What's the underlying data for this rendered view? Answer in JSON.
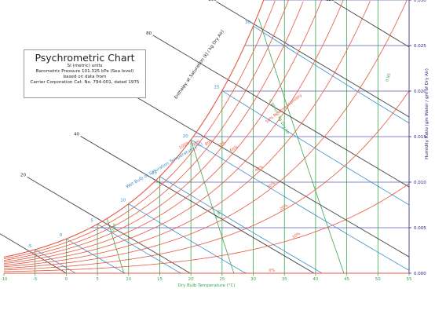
{
  "title_block": {
    "title": "Psychrometric Chart",
    "lines": [
      "SI (metric) units",
      "Barometric Pressure 101.325 kPa (Sea level)",
      "based on data from",
      "Carrier Corporation Cat. No. 794-001, dated 1975"
    ]
  },
  "chart_data": {
    "type": "line",
    "xlabel": "Dry Bulb Temperature (°C)",
    "ylabel": "Humidity Ratio (gm Water / gm of Dry Air)",
    "enthalpy_axis_label": "Enthalpy at Saturation (kJ / kg Dry Air)",
    "wet_bulb_label": "Wet Bulb or Saturation Temperature (°C)",
    "rh_label": "50% Relative Humidity",
    "volume_label": "0.90 m³ / kg Dry Air",
    "xlim": [
      -10,
      55
    ],
    "ylim": [
      0,
      0.03
    ],
    "pressure_kpa": 101.325,
    "x_ticks": [
      -10,
      -5,
      0,
      5,
      10,
      15,
      20,
      25,
      30,
      35,
      40,
      45,
      50,
      55
    ],
    "y_ticks": [
      "0.000",
      "0.005",
      "0.010",
      "0.015",
      "0.020",
      "0.025",
      "0.030"
    ],
    "rh_curves": [
      10,
      20,
      30,
      40,
      50,
      60,
      70,
      80,
      90,
      100
    ],
    "rh_labels": [
      {
        "rh": 10,
        "text": "10%"
      },
      {
        "rh": 20,
        "text": "20%"
      },
      {
        "rh": 30,
        "text": "30%"
      },
      {
        "rh": 40,
        "text": "40%"
      },
      {
        "rh": 60,
        "text": "60%"
      },
      {
        "rh": 70,
        "text": "70%"
      },
      {
        "rh": 80,
        "text": "80%"
      },
      {
        "rh": 90,
        "text": "90%"
      },
      {
        "rh": 100,
        "text": "100%"
      }
    ],
    "enthalpy_lines": [
      0,
      20,
      40,
      60,
      80,
      100,
      120,
      140
    ],
    "wet_bulb_lines": [
      -5,
      0,
      5,
      10,
      15,
      20,
      25,
      30
    ],
    "volume_lines": [
      0.8,
      0.85,
      0.9,
      0.95
    ],
    "volume_tick_labels": [
      "0.80",
      "0.85",
      "0.95"
    ],
    "colors": {
      "rh": "#e8553f",
      "enthalpy": "#444444",
      "wet_bulb": "#3a8fc8",
      "volume": "#3aa64e",
      "grid": "#5b5bb6",
      "x_axis_text": "#3aa64e",
      "y_axis_text": "#23237a",
      "zero_line_text": "#e8553f"
    }
  }
}
